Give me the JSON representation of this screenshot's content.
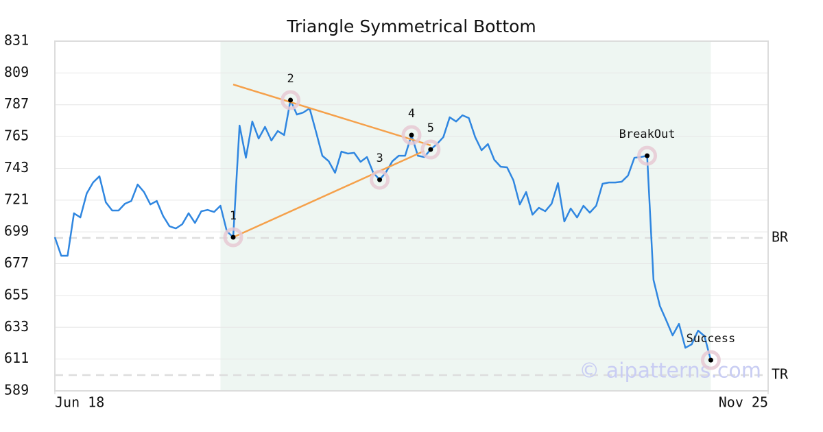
{
  "chart_data": {
    "type": "line",
    "title": "Triangle Symmetrical Bottom",
    "watermark": "© aipatterns.com",
    "x": [
      0,
      1,
      2,
      3,
      4,
      5,
      6,
      7,
      8,
      9,
      10,
      11,
      12,
      13,
      14,
      15,
      16,
      17,
      18,
      19,
      20,
      21,
      22,
      23,
      24,
      25,
      26,
      27,
      28,
      29,
      30,
      31,
      32,
      33,
      34,
      35,
      36,
      37,
      38,
      39,
      40,
      41,
      42,
      43,
      44,
      45,
      46,
      47,
      48,
      49,
      50,
      51,
      52,
      53,
      54,
      55,
      56,
      57,
      58,
      59,
      60,
      61,
      62,
      63,
      64,
      65,
      66,
      67,
      68,
      69,
      70,
      71,
      72,
      73,
      74,
      75,
      76,
      77,
      78,
      79,
      80,
      81,
      82,
      83,
      84,
      85,
      86,
      87,
      88,
      89,
      90,
      91,
      92,
      93,
      94,
      95,
      96,
      97,
      98,
      99,
      100,
      101,
      102,
      103
    ],
    "series": [
      {
        "color": "#2f86e0",
        "values": [
          695.3,
          682.5,
          682.5,
          711.9,
          709,
          725.6,
          733.2,
          737.5,
          719.5,
          713.8,
          713.8,
          718.5,
          720.4,
          731.8,
          726.6,
          718,
          720.4,
          710,
          702.9,
          701.4,
          704.3,
          711.9,
          705.2,
          713.3,
          714.2,
          712.8,
          717.1,
          699.5,
          695.3,
          772.6,
          750.3,
          775.4,
          763.6,
          771.7,
          762.2,
          768.8,
          766,
          790.2,
          780.2,
          781.6,
          784.5,
          768.4,
          751.7,
          747.9,
          739.9,
          754.6,
          753.2,
          753.7,
          747.5,
          750.8,
          739.9,
          735.1,
          740.4,
          747.9,
          751.7,
          751.7,
          766,
          751.7,
          750.8,
          756,
          759.8,
          764.6,
          778.3,
          775.4,
          779.7,
          777.8,
          764.6,
          755.5,
          759.8,
          748.9,
          744.1,
          743.7,
          734.7,
          718,
          726.6,
          710.9,
          715.7,
          713.3,
          718.5,
          732.8,
          706.2,
          715.2,
          709,
          717.1,
          712.3,
          717.1,
          732.3,
          733.2,
          733.2,
          733.7,
          738,
          750.3,
          750.8,
          751.7,
          665.8,
          647.8,
          637.8,
          627.4,
          635.4,
          618.8,
          621.2,
          630.7,
          626.9,
          610.3
        ]
      }
    ],
    "xlim": [
      0,
      112
    ],
    "xticks": [
      {
        "value": 0,
        "label": "Jun 18"
      },
      {
        "value": 112,
        "label": "Nov 25"
      }
    ],
    "ylim": [
      589,
      831
    ],
    "yticks": [
      589,
      611,
      633,
      655,
      677,
      699,
      721,
      743,
      765,
      787,
      809,
      831
    ],
    "grid": true,
    "highlight_x_range": [
      26,
      103
    ],
    "highlight_color": "#eef6f2",
    "trend_lines": [
      {
        "color": "#f5a04a",
        "x": [
          28,
          59
        ],
        "values": [
          801,
          758.9
        ]
      },
      {
        "color": "#f5a04a",
        "x": [
          28,
          58
        ],
        "values": [
          695.3,
          755
        ]
      }
    ],
    "levels": [
      {
        "label": "BR",
        "value": 694.8
      },
      {
        "label": "TR",
        "value": 599.9
      }
    ],
    "points": [
      {
        "label": "1",
        "x": 28,
        "value": 695.3
      },
      {
        "label": "2",
        "x": 37,
        "value": 790.2
      },
      {
        "label": "3",
        "x": 51,
        "value": 735.1
      },
      {
        "label": "4",
        "x": 56,
        "value": 766
      },
      {
        "label": "5",
        "x": 59,
        "value": 756
      },
      {
        "label": "BreakOut",
        "x": 93,
        "value": 751.7
      },
      {
        "label": "Success",
        "x": 103,
        "value": 610.3
      }
    ]
  }
}
